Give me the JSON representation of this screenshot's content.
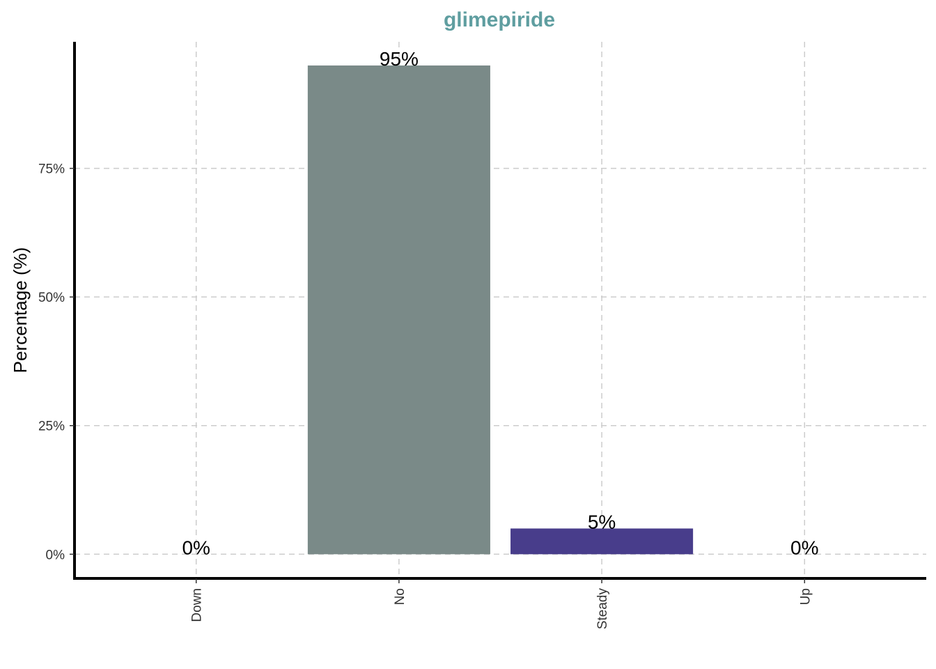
{
  "chart_data": {
    "type": "bar",
    "title": "glimepiride",
    "xlabel": "",
    "ylabel": "Percentage (%)",
    "categories": [
      "Down",
      "No",
      "Steady",
      "Up"
    ],
    "values": [
      0,
      95,
      5,
      0
    ],
    "value_labels": [
      "0%",
      "95%",
      "5%",
      "0%"
    ],
    "bar_colors": [
      "#7A8A88",
      "#7A8A88",
      "#483D8B",
      "#7A8A88"
    ],
    "ylim": [
      -4.7,
      99.6
    ],
    "yticks": [
      0,
      25,
      50,
      75
    ],
    "ytick_labels": [
      "0%",
      "25%",
      "50%",
      "75%"
    ],
    "grid": true,
    "title_color": "#5F9EA0"
  }
}
